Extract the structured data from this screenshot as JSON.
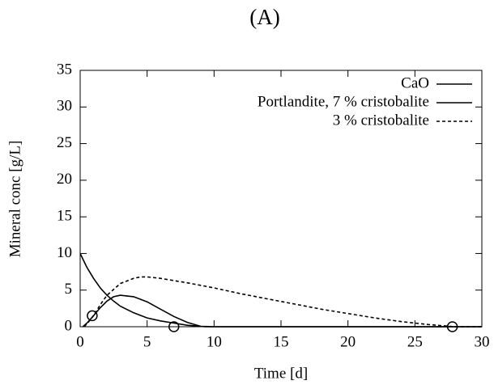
{
  "chart_data": {
    "type": "line",
    "title": "(A)",
    "x_label": "Time [d]",
    "y_label": "Mineral conc [g/L]",
    "xlim": [
      0,
      30
    ],
    "ylim": [
      0,
      35
    ],
    "xticks": [
      0,
      5,
      10,
      15,
      20,
      25,
      30
    ],
    "yticks": [
      0,
      5,
      10,
      15,
      20,
      25,
      30,
      35
    ],
    "legend": "top-right",
    "series": [
      {
        "name": "CaO",
        "color": "#000000",
        "dash": "solid",
        "x": [
          0,
          0.5,
          1,
          1.5,
          2,
          2.5,
          3,
          4,
          5,
          6,
          7,
          8,
          9,
          10,
          15,
          20,
          25,
          30
        ],
        "values": [
          10,
          8.1,
          6.6,
          5.3,
          4.3,
          3.5,
          2.8,
          1.9,
          1.2,
          0.8,
          0.5,
          0.2,
          0.05,
          0,
          0,
          0,
          0,
          0
        ]
      },
      {
        "name": "Portlandite, 7 % cristobalite",
        "color": "#000000",
        "dash": "solid",
        "x": [
          0.2,
          0.5,
          1,
          1.5,
          2,
          2.5,
          3,
          4,
          5,
          6,
          7,
          8,
          9,
          9.3,
          15,
          20,
          25,
          30
        ],
        "values": [
          0,
          0.5,
          1.5,
          2.6,
          3.5,
          4.1,
          4.3,
          4.1,
          3.4,
          2.4,
          1.4,
          0.6,
          0.05,
          0,
          0,
          0,
          0,
          0
        ]
      },
      {
        "name": "3 % cristobalite",
        "color": "#000000",
        "dash": "dashed",
        "x": [
          0.3,
          0.6,
          1,
          1.5,
          2,
          3,
          4,
          4.5,
          5,
          6,
          8,
          10,
          12,
          14,
          16,
          18,
          20,
          22,
          24,
          26,
          28,
          30
        ],
        "values": [
          0,
          0.6,
          1.5,
          3.0,
          4.3,
          5.9,
          6.6,
          6.8,
          6.8,
          6.6,
          6.0,
          5.3,
          4.5,
          3.8,
          3.1,
          2.4,
          1.8,
          1.2,
          0.7,
          0.3,
          0,
          0
        ]
      }
    ],
    "markers": {
      "x": [
        0.9,
        7,
        27.8
      ],
      "y": [
        1.5,
        0,
        0
      ]
    }
  }
}
